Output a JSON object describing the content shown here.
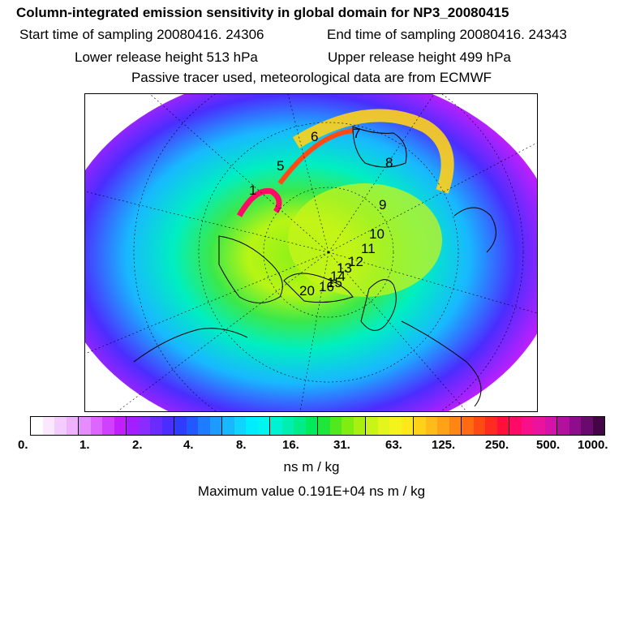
{
  "header": {
    "title": "Column-integrated emission sensitivity in global domain for NP3_20080415",
    "start_label": "Start time of sampling 20080416. 24306",
    "end_label": "End time of sampling 20080416. 24343",
    "lower_label": "Lower release height  513 hPa",
    "upper_label": "Upper release height  499 hPa",
    "tracer_label": "Passive tracer used, meteorological data are from ECMWF"
  },
  "map": {
    "labels": [
      "6",
      "5",
      "7",
      "8",
      "9",
      "10",
      "11",
      "12",
      "13",
      "14",
      "15",
      "16",
      "20",
      "1"
    ]
  },
  "legend": {
    "ticks": [
      "0.",
      "1.",
      "2.",
      "4.",
      "8.",
      "16.",
      "31.",
      "63.",
      "125.",
      "250.",
      "500.",
      "1000."
    ],
    "units": "ns m / kg",
    "colors": [
      "#ffffff",
      "#fbe7ff",
      "#f5ccff",
      "#eeb2ff",
      "#e58cff",
      "#dc66ff",
      "#d040ff",
      "#c21fff",
      "#a21fff",
      "#8a2bff",
      "#6a2bff",
      "#4b2dff",
      "#2f3bff",
      "#2158ff",
      "#1f7bff",
      "#1e9bff",
      "#17b8ff",
      "#10d4ff",
      "#00ecff",
      "#00f5f0",
      "#00f2d2",
      "#00efb1",
      "#00ec8a",
      "#00ea5a",
      "#1ee63a",
      "#52e81e",
      "#80ec10",
      "#a8f012",
      "#c8f418",
      "#e2f51c",
      "#f4f41c",
      "#ffe81a",
      "#ffd21a",
      "#ffbc18",
      "#ffa216",
      "#ff8614",
      "#ff6a12",
      "#ff4a14",
      "#ff2a20",
      "#ff0f3a",
      "#ff0a66",
      "#f7108a",
      "#ec12a0",
      "#d414a8",
      "#b2119e",
      "#8e0d8a",
      "#6a0a6e",
      "#440546"
    ]
  },
  "footer": {
    "max_label": "Maximum value  0.191E+04 ns m / kg"
  }
}
